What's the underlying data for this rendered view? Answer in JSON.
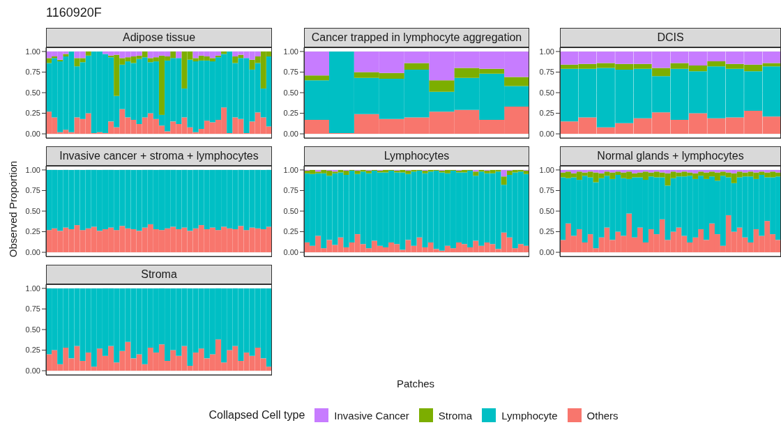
{
  "chart_data": [
    {
      "type": "bar",
      "title": "Adipose tissue",
      "annotations": [
        "1160920F"
      ],
      "legend": "bottom",
      "legend_title": "Collapsed Cell type",
      "stacked": true,
      "grid": true,
      "tick_labels": "y",
      "ylim": [
        -0.05,
        1.05
      ],
      "yticks": [
        {
          "value": 0,
          "label": "0.00"
        },
        {
          "value": 0.25,
          "label": "0.25"
        },
        {
          "value": 0.5,
          "label": "0.50"
        },
        {
          "value": 0.75,
          "label": "0.75"
        },
        {
          "value": 1,
          "label": "1.00"
        }
      ],
      "categories": [
        null,
        null,
        null,
        null,
        null,
        null,
        null,
        null,
        null,
        null,
        null,
        null,
        null,
        null,
        null,
        null,
        null,
        null,
        null,
        null,
        null,
        null,
        null,
        null,
        null,
        null,
        null,
        null,
        null,
        null,
        null,
        null,
        null,
        null,
        null,
        null,
        null,
        null,
        null,
        null
      ],
      "series": [
        {
          "name": "Others",
          "color": "#f8766d",
          "values": [
            0.27,
            0.2,
            0.02,
            0.05,
            0.02,
            0.2,
            0.18,
            0.25,
            0.01,
            0.02,
            0.01,
            0.15,
            0.08,
            0.3,
            0.2,
            0.17,
            0.12,
            0.2,
            0.25,
            0.18,
            0.1,
            0.03,
            0.15,
            0.12,
            0.2,
            0.08,
            0.02,
            0.06,
            0.16,
            0.14,
            0.17,
            0.32,
            0.01,
            0.2,
            0.18,
            0.01,
            0.15,
            0.26,
            0.2,
            0.09
          ]
        },
        {
          "name": "Lymphocyte",
          "color": "#00bfc4",
          "values": [
            0.59,
            0.72,
            0.86,
            0.89,
            0.98,
            0.62,
            0.69,
            0.7,
            0.99,
            0.98,
            0.96,
            0.78,
            0.38,
            0.54,
            0.68,
            0.69,
            0.79,
            0.73,
            0.62,
            0.7,
            0.13,
            0.86,
            0.77,
            0.8,
            0.35,
            0.82,
            0.86,
            0.83,
            0.73,
            0.74,
            0.76,
            0.65,
            0.99,
            0.66,
            0.74,
            0.91,
            0.63,
            0.6,
            0.35,
            0.85
          ]
        },
        {
          "name": "Stroma",
          "color": "#7cae00",
          "values": [
            0.06,
            0.02,
            0.02,
            0.03,
            0,
            0.1,
            0.05,
            0.05,
            0,
            0,
            0,
            0.02,
            0.5,
            0.08,
            0.05,
            0.08,
            0.04,
            0.07,
            0.05,
            0.05,
            0.72,
            0.05,
            0.08,
            0,
            0.45,
            0.1,
            0.04,
            0.06,
            0.05,
            0.04,
            0.02,
            0.03,
            0,
            0.08,
            0.04,
            0,
            0.12,
            0.08,
            0.45,
            0.06
          ]
        },
        {
          "name": "Invasive Cancer",
          "color": "#c77cff",
          "values": [
            0.08,
            0.06,
            0.1,
            0.03,
            0,
            0.08,
            0.08,
            0,
            0,
            0,
            0.03,
            0.05,
            0.04,
            0.08,
            0.07,
            0.06,
            0.05,
            0,
            0.08,
            0.07,
            0.05,
            0.06,
            0,
            0.08,
            0,
            0,
            0.08,
            0.05,
            0.06,
            0.08,
            0.05,
            0,
            0,
            0.06,
            0.04,
            0.08,
            0.1,
            0.06,
            0,
            0
          ]
        }
      ]
    },
    {
      "type": "bar",
      "title": "Cancer trapped in lymphocyte aggregation",
      "stacked": true,
      "grid": true,
      "tick_labels": "y",
      "ylim": [
        -0.05,
        1.05
      ],
      "yticks": [
        {
          "value": 0,
          "label": "0.00"
        },
        {
          "value": 0.25,
          "label": "0.25"
        },
        {
          "value": 0.5,
          "label": "0.50"
        },
        {
          "value": 0.75,
          "label": "0.75"
        },
        {
          "value": 1,
          "label": "1.00"
        }
      ],
      "categories": [
        null,
        null,
        null,
        null,
        null,
        null,
        null,
        null,
        null
      ],
      "series": [
        {
          "color": "#f8766d",
          "values": [
            0.17,
            0.01,
            0.24,
            0.18,
            0.2,
            0.27,
            0.29,
            0.17,
            0.33
          ]
        },
        {
          "color": "#00bfc4",
          "values": [
            0.48,
            0.99,
            0.44,
            0.49,
            0.58,
            0.24,
            0.39,
            0.56,
            0.25
          ]
        },
        {
          "color": "#7cae00",
          "values": [
            0.06,
            0,
            0.07,
            0.07,
            0.08,
            0.14,
            0.12,
            0.06,
            0.11
          ]
        },
        {
          "color": "#c77cff",
          "values": [
            0.29,
            0,
            0.25,
            0.26,
            0.14,
            0.35,
            0.2,
            0.21,
            0.31
          ]
        }
      ]
    },
    {
      "type": "bar",
      "title": "DCIS",
      "stacked": true,
      "grid": true,
      "tick_labels": "y",
      "ylim": [
        -0.05,
        1.05
      ],
      "yticks": [
        {
          "value": 0,
          "label": "0.00"
        },
        {
          "value": 0.25,
          "label": "0.25"
        },
        {
          "value": 0.5,
          "label": "0.50"
        },
        {
          "value": 0.75,
          "label": "0.75"
        },
        {
          "value": 1,
          "label": "1.00"
        }
      ],
      "categories": [
        null,
        null,
        null,
        null,
        null,
        null,
        null,
        null,
        null,
        null,
        null,
        null
      ],
      "series": [
        {
          "color": "#f8766d",
          "values": [
            0.15,
            0.2,
            0.08,
            0.13,
            0.19,
            0.26,
            0.17,
            0.25,
            0.19,
            0.2,
            0.28,
            0.21
          ]
        },
        {
          "color": "#00bfc4",
          "values": [
            0.64,
            0.59,
            0.72,
            0.65,
            0.6,
            0.44,
            0.62,
            0.51,
            0.63,
            0.59,
            0.48,
            0.61
          ]
        },
        {
          "color": "#7cae00",
          "values": [
            0.05,
            0.06,
            0.06,
            0.07,
            0.06,
            0.1,
            0.07,
            0.07,
            0.06,
            0.06,
            0.08,
            0.04
          ]
        },
        {
          "color": "#c77cff",
          "values": [
            0.16,
            0.15,
            0.14,
            0.15,
            0.15,
            0.2,
            0.14,
            0.17,
            0.12,
            0.15,
            0.16,
            0.14
          ]
        }
      ]
    },
    {
      "type": "bar",
      "title": "Invasive cancer + stroma + lymphocytes",
      "ylabel": "Observed Proportion",
      "stacked": true,
      "grid": true,
      "tick_labels": "y",
      "ylim": [
        -0.05,
        1.05
      ],
      "yticks": [
        {
          "value": 0,
          "label": "0.00"
        },
        {
          "value": 0.25,
          "label": "0.25"
        },
        {
          "value": 0.5,
          "label": "0.50"
        },
        {
          "value": 0.75,
          "label": "0.75"
        },
        {
          "value": 1,
          "label": "1.00"
        }
      ],
      "categories": [
        null,
        null,
        null,
        null,
        null,
        null,
        null,
        null,
        null,
        null,
        null,
        null,
        null,
        null,
        null,
        null,
        null,
        null,
        null,
        null,
        null,
        null,
        null,
        null,
        null,
        null,
        null,
        null,
        null,
        null,
        null,
        null,
        null,
        null,
        null,
        null,
        null,
        null,
        null,
        null
      ],
      "series": [
        {
          "color": "#f8766d",
          "values": [
            0.27,
            0.29,
            0.26,
            0.3,
            0.28,
            0.33,
            0.27,
            0.29,
            0.31,
            0.26,
            0.28,
            0.3,
            0.27,
            0.32,
            0.29,
            0.28,
            0.26,
            0.3,
            0.34,
            0.28,
            0.27,
            0.29,
            0.31,
            0.28,
            0.3,
            0.26,
            0.29,
            0.33,
            0.28,
            0.3,
            0.27,
            0.31,
            0.29,
            0.28,
            0.32,
            0.27,
            0.3,
            0.29,
            0.28,
            0.31
          ]
        },
        {
          "color": "#00bfc4",
          "values": [
            0.73,
            0.71,
            0.74,
            0.7,
            0.72,
            0.67,
            0.73,
            0.71,
            0.69,
            0.74,
            0.72,
            0.7,
            0.73,
            0.68,
            0.71,
            0.72,
            0.74,
            0.7,
            0.66,
            0.72,
            0.73,
            0.71,
            0.69,
            0.72,
            0.7,
            0.74,
            0.71,
            0.67,
            0.72,
            0.7,
            0.73,
            0.69,
            0.71,
            0.72,
            0.68,
            0.73,
            0.7,
            0.71,
            0.72,
            0.69
          ]
        }
      ]
    },
    {
      "type": "bar",
      "title": "Lymphocytes",
      "xlabel": "Patches",
      "stacked": true,
      "grid": true,
      "tick_labels": "y",
      "ylim": [
        -0.05,
        1.05
      ],
      "yticks": [
        {
          "value": 0,
          "label": "0.00"
        },
        {
          "value": 0.25,
          "label": "0.25"
        },
        {
          "value": 0.5,
          "label": "0.50"
        },
        {
          "value": 0.75,
          "label": "0.75"
        },
        {
          "value": 1,
          "label": "1.00"
        }
      ],
      "categories": [
        null,
        null,
        null,
        null,
        null,
        null,
        null,
        null,
        null,
        null,
        null,
        null,
        null,
        null,
        null,
        null,
        null,
        null,
        null,
        null,
        null,
        null,
        null,
        null,
        null,
        null,
        null,
        null,
        null,
        null,
        null,
        null,
        null,
        null,
        null,
        null,
        null,
        null,
        null,
        null
      ],
      "series": [
        {
          "color": "#f8766d",
          "values": [
            0.12,
            0.08,
            0.2,
            0.05,
            0.15,
            0.09,
            0.18,
            0.06,
            0.12,
            0.22,
            0.1,
            0.05,
            0.14,
            0.08,
            0.06,
            0.12,
            0.1,
            0.03,
            0.15,
            0.08,
            0.18,
            0.06,
            0.12,
            0.04,
            0.02,
            0.08,
            0.05,
            0.12,
            0.1,
            0.06,
            0.14,
            0.08,
            0.12,
            0.1,
            0.04,
            0.24,
            0.18,
            0.05,
            0.1,
            0.08
          ]
        },
        {
          "color": "#00bfc4",
          "values": [
            0.84,
            0.87,
            0.76,
            0.91,
            0.78,
            0.87,
            0.79,
            0.88,
            0.87,
            0.73,
            0.88,
            0.91,
            0.85,
            0.89,
            0.91,
            0.87,
            0.87,
            0.94,
            0.8,
            0.9,
            0.81,
            0.9,
            0.86,
            0.95,
            0.95,
            0.88,
            0.94,
            0.85,
            0.87,
            0.93,
            0.79,
            0.9,
            0.84,
            0.86,
            0.94,
            0.58,
            0.76,
            0.92,
            0.88,
            0.87
          ]
        },
        {
          "color": "#7cae00",
          "values": [
            0.03,
            0.05,
            0.02,
            0.04,
            0.06,
            0.02,
            0.03,
            0.05,
            0.01,
            0.04,
            0.02,
            0.03,
            0.01,
            0.02,
            0.03,
            0.01,
            0.02,
            0.03,
            0.04,
            0.02,
            0.01,
            0.03,
            0.02,
            0.01,
            0.02,
            0.04,
            0.01,
            0.02,
            0.03,
            0.01,
            0.05,
            0.02,
            0.03,
            0.04,
            0.02,
            0.1,
            0.05,
            0.03,
            0.02,
            0.04
          ]
        },
        {
          "color": "#c77cff",
          "values": [
            0.01,
            0,
            0.02,
            0,
            0.01,
            0.02,
            0,
            0.01,
            0,
            0.01,
            0,
            0.01,
            0,
            0.01,
            0,
            0,
            0.01,
            0,
            0.01,
            0,
            0,
            0.01,
            0,
            0,
            0.01,
            0,
            0,
            0.01,
            0,
            0,
            0.02,
            0,
            0.01,
            0,
            0,
            0.08,
            0.01,
            0,
            0,
            0.01
          ]
        }
      ]
    },
    {
      "type": "bar",
      "title": "Normal glands + lymphocytes",
      "stacked": true,
      "grid": true,
      "tick_labels": "y",
      "ylim": [
        -0.05,
        1.05
      ],
      "yticks": [
        {
          "value": 0,
          "label": "0.00"
        },
        {
          "value": 0.25,
          "label": "0.25"
        },
        {
          "value": 0.5,
          "label": "0.50"
        },
        {
          "value": 0.75,
          "label": "0.75"
        },
        {
          "value": 1,
          "label": "1.00"
        }
      ],
      "categories": [
        null,
        null,
        null,
        null,
        null,
        null,
        null,
        null,
        null,
        null,
        null,
        null,
        null,
        null,
        null,
        null,
        null,
        null,
        null,
        null,
        null,
        null,
        null,
        null,
        null,
        null,
        null,
        null,
        null,
        null,
        null,
        null,
        null,
        null,
        null,
        null,
        null,
        null,
        null,
        null
      ],
      "series": [
        {
          "color": "#f8766d",
          "values": [
            0.15,
            0.35,
            0.2,
            0.28,
            0.12,
            0.22,
            0.05,
            0.18,
            0.3,
            0.15,
            0.25,
            0.2,
            0.47,
            0.18,
            0.3,
            0.12,
            0.28,
            0.22,
            0.4,
            0.15,
            0.25,
            0.3,
            0.2,
            0.12,
            0.18,
            0.28,
            0.15,
            0.35,
            0.22,
            0.08,
            0.45,
            0.25,
            0.3,
            0.18,
            0.12,
            0.28,
            0.2,
            0.38,
            0.22,
            0.15
          ]
        },
        {
          "color": "#00bfc4",
          "values": [
            0.76,
            0.55,
            0.71,
            0.6,
            0.81,
            0.69,
            0.8,
            0.72,
            0.63,
            0.74,
            0.69,
            0.7,
            0.42,
            0.73,
            0.61,
            0.76,
            0.64,
            0.69,
            0.51,
            0.66,
            0.65,
            0.62,
            0.72,
            0.81,
            0.71,
            0.65,
            0.74,
            0.57,
            0.65,
            0.85,
            0.46,
            0.59,
            0.61,
            0.74,
            0.8,
            0.61,
            0.74,
            0.53,
            0.69,
            0.77
          ]
        },
        {
          "color": "#7cae00",
          "values": [
            0.06,
            0.08,
            0.05,
            0.1,
            0.04,
            0.07,
            0.12,
            0.06,
            0.05,
            0.08,
            0.04,
            0.07,
            0.09,
            0.05,
            0.06,
            0.1,
            0.05,
            0.07,
            0.06,
            0.15,
            0.08,
            0.05,
            0.06,
            0.04,
            0.07,
            0.05,
            0.08,
            0.06,
            0.1,
            0.05,
            0.06,
            0.12,
            0.07,
            0.05,
            0.06,
            0.08,
            0.04,
            0.06,
            0.07,
            0.05
          ]
        },
        {
          "color": "#c77cff",
          "values": [
            0.03,
            0.02,
            0.04,
            0.02,
            0.03,
            0.02,
            0.03,
            0.04,
            0.02,
            0.03,
            0.02,
            0.03,
            0.02,
            0.04,
            0.03,
            0.02,
            0.03,
            0.02,
            0.03,
            0.04,
            0.02,
            0.03,
            0.02,
            0.03,
            0.04,
            0.02,
            0.03,
            0.02,
            0.03,
            0.02,
            0.03,
            0.04,
            0.02,
            0.03,
            0.02,
            0.03,
            0.02,
            0.03,
            0.02,
            0.03
          ]
        }
      ]
    },
    {
      "type": "bar",
      "title": "Stroma",
      "stacked": true,
      "grid": true,
      "tick_labels": "y",
      "ylim": [
        -0.05,
        1.05
      ],
      "yticks": [
        {
          "value": 0,
          "label": "0.00"
        },
        {
          "value": 0.25,
          "label": "0.25"
        },
        {
          "value": 0.5,
          "label": "0.50"
        },
        {
          "value": 0.75,
          "label": "0.75"
        },
        {
          "value": 1,
          "label": "1.00"
        }
      ],
      "categories": [
        null,
        null,
        null,
        null,
        null,
        null,
        null,
        null,
        null,
        null,
        null,
        null,
        null,
        null,
        null,
        null,
        null,
        null,
        null,
        null,
        null,
        null,
        null,
        null,
        null,
        null,
        null,
        null,
        null,
        null,
        null,
        null,
        null,
        null,
        null,
        null,
        null,
        null,
        null,
        null
      ],
      "series": [
        {
          "color": "#f8766d",
          "values": [
            0.2,
            0.25,
            0.08,
            0.28,
            0.15,
            0.3,
            0.12,
            0.22,
            0.05,
            0.27,
            0.18,
            0.3,
            0.1,
            0.24,
            0.35,
            0.15,
            0.2,
            0.08,
            0.28,
            0.22,
            0.32,
            0.12,
            0.25,
            0.18,
            0.3,
            0.06,
            0.22,
            0.27,
            0.15,
            0.2,
            0.38,
            0.1,
            0.25,
            0.3,
            0.12,
            0.22,
            0.18,
            0.28,
            0.15,
            0.05
          ]
        },
        {
          "color": "#00bfc4",
          "values": [
            0.8,
            0.75,
            0.92,
            0.72,
            0.85,
            0.7,
            0.88,
            0.78,
            0.95,
            0.73,
            0.82,
            0.7,
            0.9,
            0.76,
            0.65,
            0.85,
            0.8,
            0.92,
            0.72,
            0.78,
            0.68,
            0.88,
            0.75,
            0.82,
            0.7,
            0.94,
            0.78,
            0.73,
            0.85,
            0.8,
            0.62,
            0.9,
            0.75,
            0.7,
            0.88,
            0.78,
            0.82,
            0.72,
            0.85,
            0.95
          ]
        }
      ]
    }
  ]
}
